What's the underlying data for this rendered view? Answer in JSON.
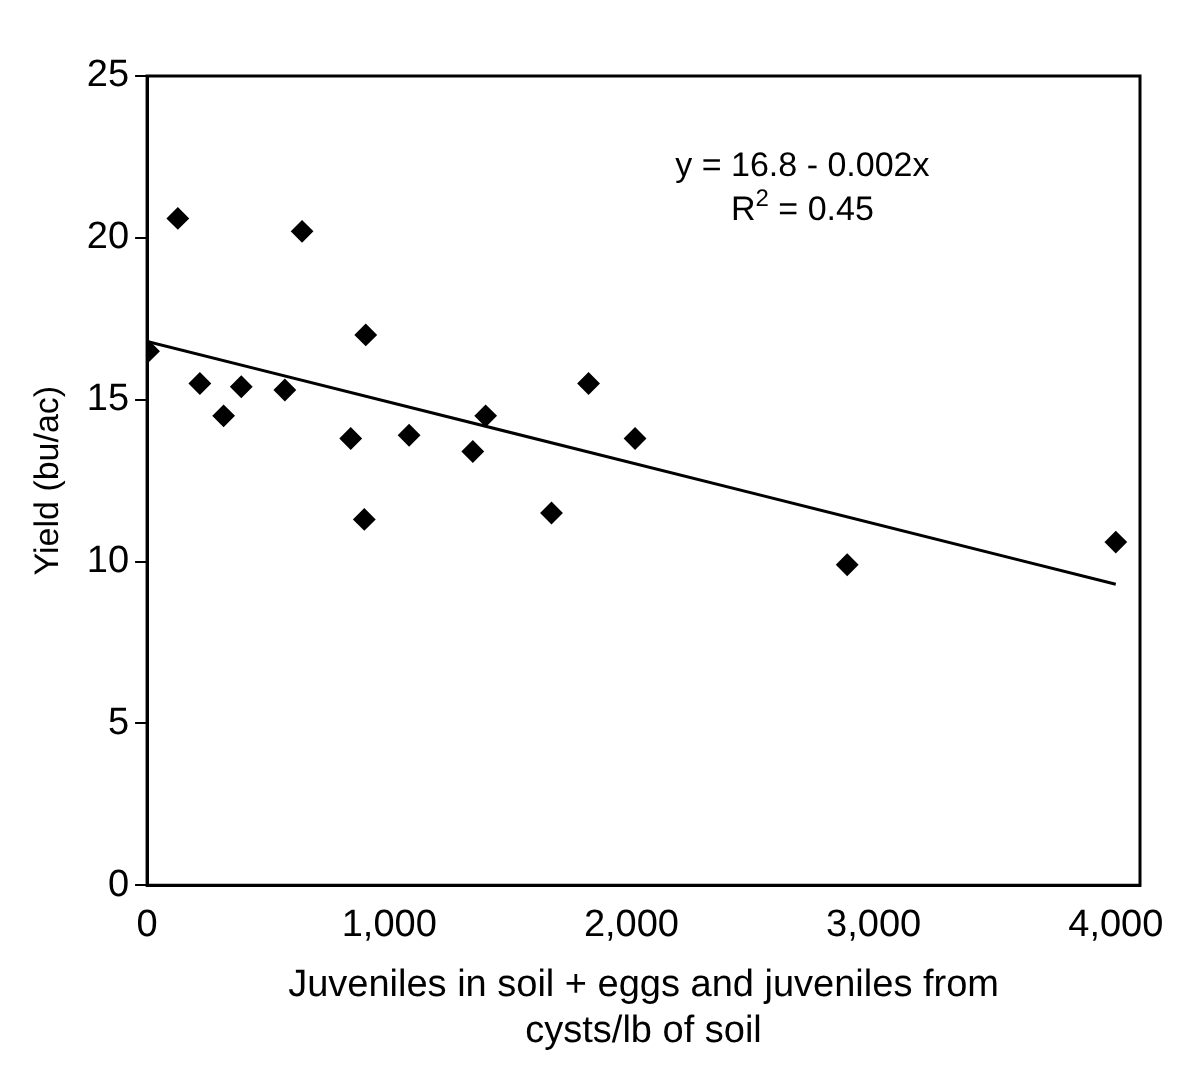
{
  "chart_data": {
    "type": "scatter",
    "xlabel": "Juveniles in soil + eggs and juveniles from cysts/lb of soil",
    "ylabel": "Yield (bu/ac)",
    "series": [
      {
        "type": "scatter",
        "color": "#000000",
        "marker": "diamond",
        "x": [
          6,
          127,
          218,
          316,
          389,
          569,
          640,
          841,
          903,
          897,
          1082,
          1345,
          1398,
          1670,
          1823,
          2015,
          2891,
          4000
        ],
        "values": [
          16.5,
          20.6,
          15.5,
          14.5,
          15.4,
          15.3,
          20.2,
          13.8,
          17.0,
          11.3,
          13.9,
          13.4,
          14.5,
          11.5,
          15.5,
          13.8,
          9.9,
          10.6
        ]
      },
      {
        "type": "line",
        "color": "#000000",
        "marker": "none",
        "line_style": "solid",
        "x": [
          0,
          4000
        ],
        "values": [
          16.8,
          9.3
        ]
      }
    ],
    "xlim": [
      0,
      4100
    ],
    "xticks": [
      {
        "value": 0,
        "label": "0"
      },
      {
        "value": 1000,
        "label": "1,000"
      },
      {
        "value": 2000,
        "label": "2,000"
      },
      {
        "value": 3000,
        "label": "3,000"
      },
      {
        "value": 4000,
        "label": "4,000"
      }
    ],
    "ylim": [
      0,
      25
    ],
    "yticks": [
      0,
      5,
      10,
      15,
      20,
      25
    ],
    "grid": false,
    "legend": false,
    "annotations": [
      "y = 16.8 - 0.002x",
      "R$^{2}$ = 0.45"
    ]
  }
}
